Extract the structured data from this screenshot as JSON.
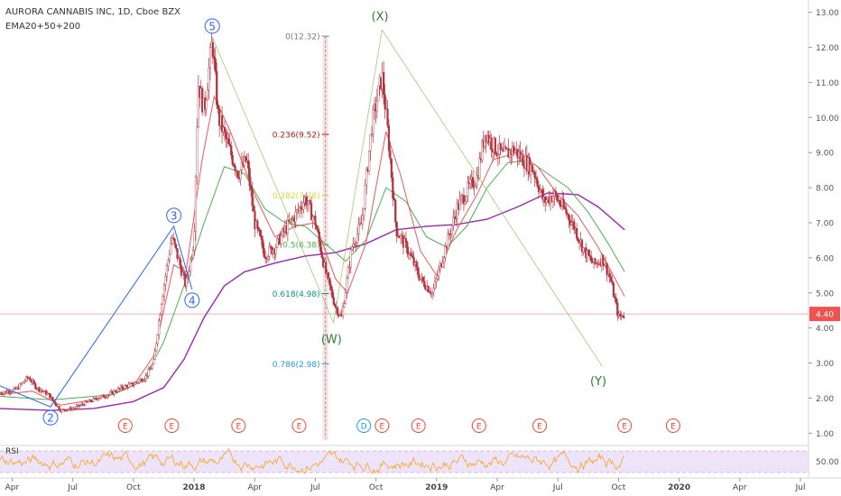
{
  "header": {
    "symbol_line": "AURORA CANNABIS INC, 1D, Cboe BZX",
    "indicator_line": "EMA20+50+200"
  },
  "price_label": "4.40",
  "rsi": {
    "label": "RSI",
    "level_label": "50.00"
  },
  "colors": {
    "candle": "#b0323d",
    "ema20": "#e8595f",
    "ema50": "#4caf50",
    "ema200": "#9c27b0",
    "wave_line": "#2962ff",
    "price_line": "#ef5350",
    "rsi_line": "#ff9800",
    "rsi_band": "#e6d8f6"
  },
  "chart_data": {
    "type": "candlestick",
    "title": "AURORA CANNABIS INC, 1D, Cboe BZX",
    "ylim": [
      0.7,
      13.3
    ],
    "yticks": [
      "13.00",
      "12.00",
      "11.00",
      "10.00",
      "9.00",
      "8.00",
      "7.00",
      "6.00",
      "5.00",
      "4.00",
      "3.00",
      "2.00",
      "1.00"
    ],
    "ytick_values": [
      13,
      12,
      11,
      10,
      9,
      8,
      7,
      6,
      5,
      4,
      3,
      2,
      1
    ],
    "xticks": [
      "Apr",
      "Jul",
      "Oct",
      "2018",
      "Apr",
      "Jul",
      "Oct",
      "2019",
      "Apr",
      "Jul",
      "Oct",
      "2020",
      "Apr",
      "Jul"
    ],
    "xtick_bold": [
      false,
      false,
      false,
      true,
      false,
      false,
      false,
      true,
      false,
      false,
      false,
      true,
      false,
      false
    ],
    "xtick_t": [
      0,
      3,
      6,
      9,
      12,
      15,
      18,
      21,
      24,
      27,
      30,
      33,
      36,
      39
    ],
    "xlim_t": [
      -0.6,
      39.4
    ],
    "price_path": [
      {
        "t": -0.6,
        "p": 2.15
      },
      {
        "t": 0.2,
        "p": 2.25
      },
      {
        "t": 0.8,
        "p": 2.6
      },
      {
        "t": 1.2,
        "p": 2.3
      },
      {
        "t": 1.8,
        "p": 2.1
      },
      {
        "t": 2.4,
        "p": 1.65
      },
      {
        "t": 3.0,
        "p": 1.7
      },
      {
        "t": 3.6,
        "p": 1.85
      },
      {
        "t": 4.2,
        "p": 2.0
      },
      {
        "t": 4.8,
        "p": 2.1
      },
      {
        "t": 5.4,
        "p": 2.3
      },
      {
        "t": 6.0,
        "p": 2.4
      },
      {
        "t": 6.6,
        "p": 2.6
      },
      {
        "t": 7.0,
        "p": 3.0
      },
      {
        "t": 7.4,
        "p": 4.8
      },
      {
        "t": 7.9,
        "p": 6.6
      },
      {
        "t": 8.3,
        "p": 5.8
      },
      {
        "t": 8.6,
        "p": 5.2
      },
      {
        "t": 9.0,
        "p": 6.5
      },
      {
        "t": 9.2,
        "p": 11.0
      },
      {
        "t": 9.5,
        "p": 10.2
      },
      {
        "t": 9.9,
        "p": 12.2
      },
      {
        "t": 10.2,
        "p": 10.0
      },
      {
        "t": 10.8,
        "p": 9.0
      },
      {
        "t": 11.2,
        "p": 8.4
      },
      {
        "t": 11.6,
        "p": 8.8
      },
      {
        "t": 12.0,
        "p": 7.0
      },
      {
        "t": 12.5,
        "p": 6.1
      },
      {
        "t": 13.0,
        "p": 6.3
      },
      {
        "t": 13.5,
        "p": 6.8
      },
      {
        "t": 14.0,
        "p": 7.2
      },
      {
        "t": 14.5,
        "p": 7.7
      },
      {
        "t": 15.0,
        "p": 7.0
      },
      {
        "t": 15.5,
        "p": 5.6
      },
      {
        "t": 16.0,
        "p": 4.6
      },
      {
        "t": 16.3,
        "p": 4.3
      },
      {
        "t": 16.8,
        "p": 6.3
      },
      {
        "t": 17.3,
        "p": 7.0
      },
      {
        "t": 17.8,
        "p": 9.8
      },
      {
        "t": 18.3,
        "p": 11.2
      },
      {
        "t": 18.6,
        "p": 9.5
      },
      {
        "t": 19.0,
        "p": 6.8
      },
      {
        "t": 19.6,
        "p": 6.2
      },
      {
        "t": 20.2,
        "p": 5.4
      },
      {
        "t": 20.8,
        "p": 5.0
      },
      {
        "t": 21.4,
        "p": 6.2
      },
      {
        "t": 22.0,
        "p": 7.4
      },
      {
        "t": 22.6,
        "p": 8.0
      },
      {
        "t": 23.0,
        "p": 8.3
      },
      {
        "t": 23.4,
        "p": 9.6
      },
      {
        "t": 23.8,
        "p": 9.2
      },
      {
        "t": 24.3,
        "p": 8.9
      },
      {
        "t": 24.8,
        "p": 9.1
      },
      {
        "t": 25.3,
        "p": 8.8
      },
      {
        "t": 25.8,
        "p": 8.5
      },
      {
        "t": 26.3,
        "p": 7.6
      },
      {
        "t": 26.8,
        "p": 7.8
      },
      {
        "t": 27.3,
        "p": 7.4
      },
      {
        "t": 27.8,
        "p": 6.9
      },
      {
        "t": 28.3,
        "p": 6.2
      },
      {
        "t": 28.8,
        "p": 5.8
      },
      {
        "t": 29.2,
        "p": 6.0
      },
      {
        "t": 29.6,
        "p": 5.4
      },
      {
        "t": 30.0,
        "p": 4.3
      },
      {
        "t": 30.3,
        "p": 4.4
      }
    ],
    "ema20": [
      {
        "t": -0.6,
        "p": 2.1
      },
      {
        "t": 1.0,
        "p": 2.2
      },
      {
        "t": 2.4,
        "p": 1.8
      },
      {
        "t": 4.0,
        "p": 1.95
      },
      {
        "t": 6.0,
        "p": 2.35
      },
      {
        "t": 7.0,
        "p": 3.2
      },
      {
        "t": 8.0,
        "p": 5.8
      },
      {
        "t": 8.6,
        "p": 5.6
      },
      {
        "t": 9.4,
        "p": 8.8
      },
      {
        "t": 10.0,
        "p": 10.6
      },
      {
        "t": 10.8,
        "p": 9.6
      },
      {
        "t": 12.0,
        "p": 7.8
      },
      {
        "t": 13.0,
        "p": 6.6
      },
      {
        "t": 14.0,
        "p": 6.9
      },
      {
        "t": 15.0,
        "p": 7.0
      },
      {
        "t": 16.0,
        "p": 5.4
      },
      {
        "t": 16.6,
        "p": 5.0
      },
      {
        "t": 17.5,
        "p": 6.4
      },
      {
        "t": 18.5,
        "p": 9.6
      },
      {
        "t": 19.2,
        "p": 8.4
      },
      {
        "t": 20.2,
        "p": 6.2
      },
      {
        "t": 21.0,
        "p": 5.5
      },
      {
        "t": 22.0,
        "p": 6.8
      },
      {
        "t": 23.0,
        "p": 7.8
      },
      {
        "t": 23.8,
        "p": 8.8
      },
      {
        "t": 25.0,
        "p": 9.0
      },
      {
        "t": 26.0,
        "p": 8.6
      },
      {
        "t": 27.0,
        "p": 7.8
      },
      {
        "t": 28.0,
        "p": 7.2
      },
      {
        "t": 29.0,
        "p": 6.3
      },
      {
        "t": 30.3,
        "p": 4.9
      }
    ],
    "ema50": [
      {
        "t": -0.6,
        "p": 2.05
      },
      {
        "t": 2.0,
        "p": 1.95
      },
      {
        "t": 5.0,
        "p": 2.1
      },
      {
        "t": 6.5,
        "p": 2.5
      },
      {
        "t": 7.5,
        "p": 3.6
      },
      {
        "t": 8.5,
        "p": 5.2
      },
      {
        "t": 9.5,
        "p": 7.0
      },
      {
        "t": 10.5,
        "p": 8.6
      },
      {
        "t": 11.5,
        "p": 8.4
      },
      {
        "t": 12.5,
        "p": 7.4
      },
      {
        "t": 13.5,
        "p": 7.0
      },
      {
        "t": 14.5,
        "p": 6.9
      },
      {
        "t": 15.5,
        "p": 6.4
      },
      {
        "t": 16.5,
        "p": 5.9
      },
      {
        "t": 17.5,
        "p": 6.5
      },
      {
        "t": 18.5,
        "p": 8.0
      },
      {
        "t": 19.5,
        "p": 7.6
      },
      {
        "t": 20.5,
        "p": 6.6
      },
      {
        "t": 21.5,
        "p": 6.3
      },
      {
        "t": 22.5,
        "p": 6.9
      },
      {
        "t": 23.5,
        "p": 8.0
      },
      {
        "t": 24.5,
        "p": 8.7
      },
      {
        "t": 25.5,
        "p": 8.8
      },
      {
        "t": 26.5,
        "p": 8.4
      },
      {
        "t": 27.5,
        "p": 8.0
      },
      {
        "t": 28.5,
        "p": 7.3
      },
      {
        "t": 29.5,
        "p": 6.4
      },
      {
        "t": 30.3,
        "p": 5.6
      }
    ],
    "ema200": [
      {
        "t": -0.6,
        "p": 1.7
      },
      {
        "t": 2.0,
        "p": 1.65
      },
      {
        "t": 4.0,
        "p": 1.7
      },
      {
        "t": 6.0,
        "p": 1.9
      },
      {
        "t": 7.5,
        "p": 2.3
      },
      {
        "t": 8.5,
        "p": 3.1
      },
      {
        "t": 9.5,
        "p": 4.3
      },
      {
        "t": 10.5,
        "p": 5.2
      },
      {
        "t": 11.5,
        "p": 5.6
      },
      {
        "t": 13.0,
        "p": 5.85
      },
      {
        "t": 14.5,
        "p": 6.05
      },
      {
        "t": 16.0,
        "p": 6.15
      },
      {
        "t": 17.5,
        "p": 6.4
      },
      {
        "t": 19.0,
        "p": 6.8
      },
      {
        "t": 20.5,
        "p": 6.9
      },
      {
        "t": 22.0,
        "p": 6.95
      },
      {
        "t": 23.5,
        "p": 7.1
      },
      {
        "t": 25.0,
        "p": 7.45
      },
      {
        "t": 26.5,
        "p": 7.85
      },
      {
        "t": 28.0,
        "p": 7.8
      },
      {
        "t": 29.0,
        "p": 7.45
      },
      {
        "t": 30.3,
        "p": 6.8
      }
    ],
    "wave_points": [
      {
        "label": "2",
        "t": 1.9,
        "p": 1.75
      },
      {
        "label": "3",
        "t": 8.0,
        "p": 6.9
      },
      {
        "label": "4",
        "t": 8.9,
        "p": 5.1
      },
      {
        "label": "5",
        "t": 9.9,
        "p": 12.3
      }
    ],
    "wave_labels": [
      {
        "label": "(W)",
        "t": 15.8,
        "p": 3.7
      },
      {
        "label": "(X)",
        "t": 18.2,
        "p": 12.9
      },
      {
        "label": "(Y)",
        "t": 29.0,
        "p": 2.5
      }
    ],
    "fib_levels": [
      {
        "label": "0(12.32)",
        "p": 12.32,
        "color": "#787b86"
      },
      {
        "label": "0.236(9.52)",
        "p": 9.52,
        "color": "#b71c1c"
      },
      {
        "label": "0.382(7.78)",
        "p": 7.78,
        "color": "#cddc39"
      },
      {
        "label": "0.5(6.38)",
        "p": 6.38,
        "color": "#4caf50"
      },
      {
        "label": "0.618(4.98)",
        "p": 4.98,
        "color": "#009688"
      },
      {
        "label": "0.786(2.98)",
        "p": 2.98,
        "color": "#2196f3"
      }
    ],
    "earnings_markers": [
      {
        "label": "E",
        "t": 5.6
      },
      {
        "label": "E",
        "t": 7.9
      },
      {
        "label": "E",
        "t": 11.2
      },
      {
        "label": "E",
        "t": 14.2
      },
      {
        "label": "D",
        "t": 17.4
      },
      {
        "label": "E",
        "t": 18.3
      },
      {
        "label": "E",
        "t": 20.1
      },
      {
        "label": "E",
        "t": 23.1
      },
      {
        "label": "E",
        "t": 26.1
      },
      {
        "label": "E",
        "t": 30.3
      },
      {
        "label": "E",
        "t": 32.7
      }
    ],
    "current_price": 4.4
  }
}
